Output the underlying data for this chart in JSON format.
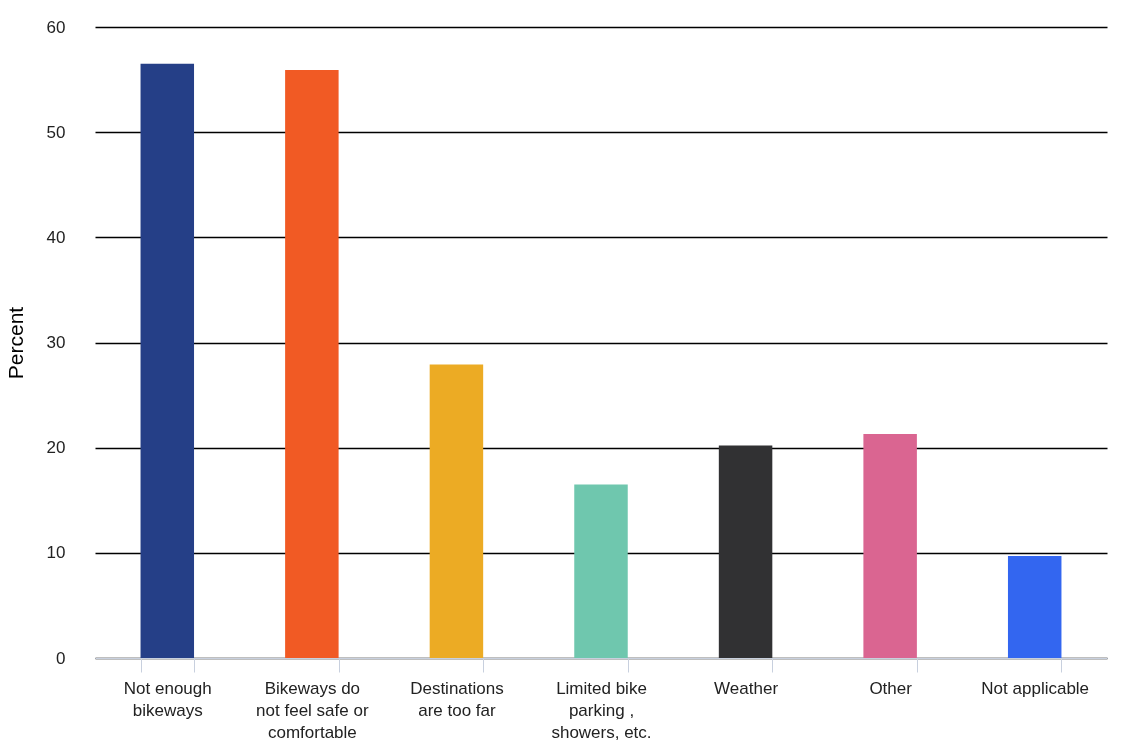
{
  "chart_data": {
    "type": "bar",
    "ylabel": "Percent",
    "categories": [
      "Not enough\nbikeways",
      "Bikeways do\nnot feel safe or\ncomfortable",
      "Destinations\nare too far",
      "Limited bike\nparking ,\nshowers, etc.",
      "Weather",
      "Other",
      "Not applicable"
    ],
    "values": [
      56.5,
      55.9,
      27.9,
      16.5,
      20.2,
      21.3,
      9.7
    ],
    "colors": [
      "#253f87",
      "#f15a24",
      "#ecab24",
      "#6fc7ae",
      "#313133",
      "#da6591",
      "#3366f0"
    ],
    "ylim": [
      0,
      60
    ],
    "yticks": [
      0,
      10,
      20,
      30,
      40,
      50,
      60
    ],
    "grid": "y",
    "legend": false
  }
}
